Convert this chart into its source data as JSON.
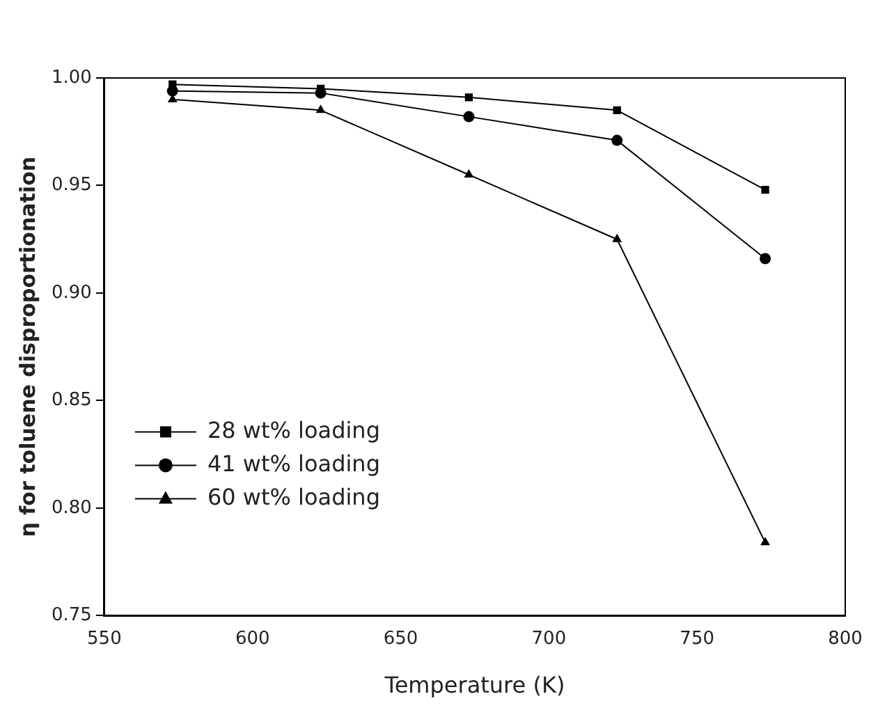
{
  "chart_data": {
    "type": "line",
    "xlabel": "Temperature (K)",
    "ylabel": "η for toluene disproportionation",
    "x": [
      573,
      623,
      673,
      723,
      773
    ],
    "series": [
      {
        "name": "28 wt% loading",
        "color": "#000000",
        "marker": "square",
        "values": [
          0.997,
          0.995,
          0.991,
          0.985,
          0.948
        ]
      },
      {
        "name": "41 wt% loading",
        "color": "#000000",
        "marker": "circle",
        "values": [
          0.994,
          0.993,
          0.982,
          0.971,
          0.916
        ]
      },
      {
        "name": "60 wt% loading",
        "color": "#000000",
        "marker": "triangle",
        "values": [
          0.99,
          0.985,
          0.955,
          0.925,
          0.784
        ]
      }
    ],
    "xlim": [
      550,
      800
    ],
    "xticks": [
      550,
      600,
      650,
      700,
      750,
      800
    ],
    "ylim": [
      0.75,
      1.0
    ],
    "yticks": [
      {
        "value": 0.75,
        "label": "0.75"
      },
      {
        "value": 0.8,
        "label": "0.80"
      },
      {
        "value": 0.85,
        "label": "0.85"
      },
      {
        "value": 0.9,
        "label": "0.90"
      },
      {
        "value": 0.95,
        "label": "0.95"
      },
      {
        "value": 1.0,
        "label": "1.00"
      }
    ],
    "grid": false,
    "legend": "bottom left",
    "line_style": "solid"
  }
}
